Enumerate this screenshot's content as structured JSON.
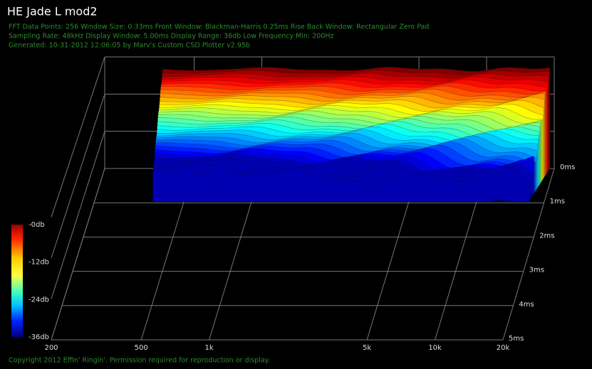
{
  "chart_data": {
    "type": "waterfall",
    "title": "HE Jade L mod2",
    "info": [
      "FFT Data Points: 256  Window Size: 0.33ms   Front Window: Blackman-Harris 0.25ms Rise   Back Window: Rectangular Zero Pad",
      "Sampling Rate: 48kHz  Display Window: 5.00ms   Display Range: 36db  Low Frequency Min: 200Hz",
      "Generated: 10-31-2012 12:06:05 by Marv's Custom CSD Plotter v2.95b"
    ],
    "footer": "Copyright 2012 Effin' Ringin'. Permission required for reproduction or display.",
    "x_scale": "log",
    "xlim": [
      200,
      20000
    ],
    "xticks": [
      200,
      500,
      {
        "value": 1000,
        "label": "1k"
      },
      {
        "value": 5000,
        "label": "5k"
      },
      {
        "value": 10000,
        "label": "10k"
      },
      {
        "value": 20000,
        "label": "20k"
      }
    ],
    "zlim": [
      0,
      5
    ],
    "zticks": [
      {
        "value": 0,
        "label": "0ms"
      },
      {
        "value": 1,
        "label": "1ms"
      },
      {
        "value": 2,
        "label": "2ms"
      },
      {
        "value": 3,
        "label": "3ms"
      },
      {
        "value": 4,
        "label": "4ms"
      },
      {
        "value": 5,
        "label": "5ms"
      }
    ],
    "colorbar": {
      "lim": [
        -36,
        0
      ],
      "ticks": [
        {
          "value": 0,
          "label": "-0db"
        },
        {
          "value": -12,
          "label": "-12db"
        },
        {
          "value": -24,
          "label": "-24db"
        },
        {
          "value": -36,
          "label": "-36db"
        }
      ]
    },
    "grid": true
  }
}
